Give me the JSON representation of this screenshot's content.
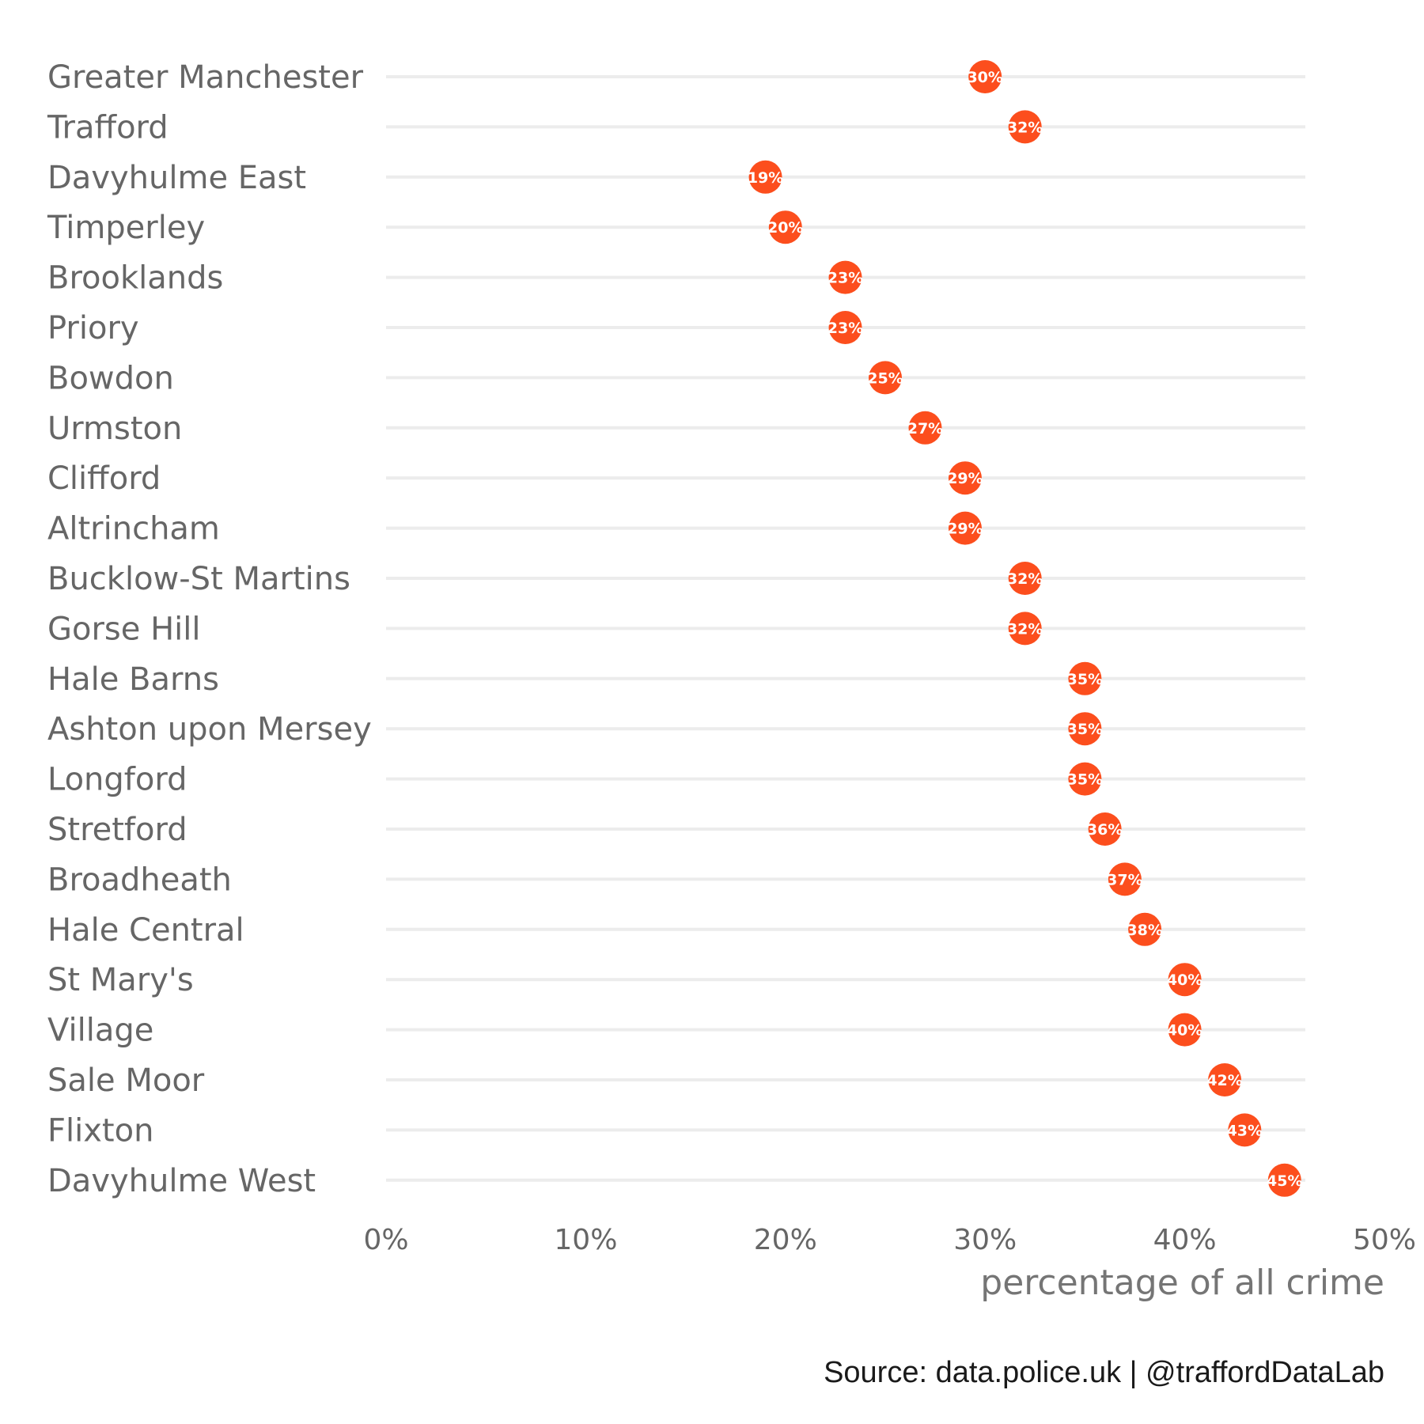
{
  "chart_data": {
    "type": "lollipop",
    "categories": [
      "Greater Manchester",
      "Trafford",
      "Davyhulme East",
      "Timperley",
      "Brooklands",
      "Priory",
      "Bowdon",
      "Urmston",
      "Clifford",
      "Altrincham",
      "Bucklow-St Martins",
      "Gorse Hill",
      "Hale Barns",
      "Ashton upon Mersey",
      "Longford",
      "Stretford",
      "Broadheath",
      "Hale Central",
      "St Mary's",
      "Village",
      "Sale Moor",
      "Flixton",
      "Davyhulme West"
    ],
    "values": [
      30,
      32,
      19,
      20,
      23,
      23,
      25,
      27,
      29,
      29,
      32,
      32,
      35,
      35,
      35,
      36,
      37,
      38,
      40,
      40,
      42,
      43,
      45
    ],
    "data_labels": [
      "30%",
      "32%",
      "19%",
      "20%",
      "23%",
      "23%",
      "25%",
      "27%",
      "29%",
      "29%",
      "32%",
      "32%",
      "35%",
      "35%",
      "35%",
      "36%",
      "37%",
      "38%",
      "40%",
      "40%",
      "42%",
      "43%",
      "45%"
    ],
    "xlim": [
      0,
      50
    ],
    "xticks": [
      "0%",
      "10%",
      "20%",
      "30%",
      "40%",
      "50%"
    ],
    "xlabel": "percentage of all crime",
    "ylabel": "",
    "grid": false,
    "legend": "none",
    "colors": {
      "point": "#fc4e1d",
      "stem": "#ececec",
      "text": "#666666"
    }
  },
  "caption": "Source: data.police.uk  |  @traffordDataLab"
}
